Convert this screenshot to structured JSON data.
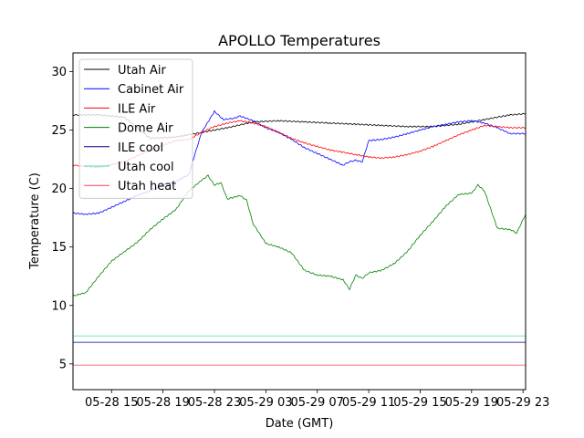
{
  "chart_data": {
    "type": "line",
    "title": "APOLLO Temperatures",
    "xlabel": "Date (GMT)",
    "ylabel": "Temperature (C)",
    "xlim": [
      0,
      35.2
    ],
    "ylim": [
      2.8,
      31.6
    ],
    "x_ticks": [
      {
        "x": 3,
        "label": "05-28 15"
      },
      {
        "x": 7,
        "label": "05-28 19"
      },
      {
        "x": 11,
        "label": "05-28 23"
      },
      {
        "x": 15,
        "label": "05-29 03"
      },
      {
        "x": 19,
        "label": "05-29 07"
      },
      {
        "x": 23,
        "label": "05-29 11"
      },
      {
        "x": 27,
        "label": "05-29 15"
      },
      {
        "x": 31,
        "label": "05-29 19"
      },
      {
        "x": 35,
        "label": "05-29 23"
      }
    ],
    "y_ticks": [
      5,
      10,
      15,
      20,
      25,
      30
    ],
    "legend_position": "top-left",
    "series": [
      {
        "name": "Utah Air",
        "color": "#000000",
        "points": [
          [
            0,
            26.3
          ],
          [
            2,
            26.3
          ],
          [
            4,
            26.1
          ],
          [
            6,
            24.3
          ],
          [
            8,
            24.4
          ],
          [
            10,
            24.8
          ],
          [
            12,
            25.2
          ],
          [
            14,
            25.7
          ],
          [
            16,
            25.8
          ],
          [
            18,
            25.7
          ],
          [
            20,
            25.6
          ],
          [
            22,
            25.5
          ],
          [
            24,
            25.4
          ],
          [
            26,
            25.3
          ],
          [
            28,
            25.3
          ],
          [
            30,
            25.5
          ],
          [
            32,
            25.9
          ],
          [
            34,
            26.3
          ],
          [
            35.2,
            26.4
          ]
        ]
      },
      {
        "name": "Cabinet Air",
        "color": "#0000ff",
        "points": [
          [
            0,
            17.9
          ],
          [
            1,
            17.8
          ],
          [
            2,
            17.9
          ],
          [
            3,
            18.4
          ],
          [
            4,
            18.9
          ],
          [
            5,
            19.4
          ],
          [
            6,
            19.8
          ],
          [
            7,
            20.3
          ],
          [
            8,
            20.6
          ],
          [
            9,
            21.2
          ],
          [
            10,
            24.8
          ],
          [
            11,
            26.6
          ],
          [
            11.7,
            25.9
          ],
          [
            12.5,
            26.0
          ],
          [
            13,
            26.2
          ],
          [
            14,
            25.8
          ],
          [
            15,
            25.2
          ],
          [
            16,
            24.8
          ],
          [
            17,
            24.2
          ],
          [
            18,
            23.5
          ],
          [
            19,
            23.0
          ],
          [
            20,
            22.5
          ],
          [
            21,
            22.0
          ],
          [
            21.5,
            22.3
          ],
          [
            22,
            22.4
          ],
          [
            22.5,
            22.3
          ],
          [
            23,
            24.1
          ],
          [
            24,
            24.2
          ],
          [
            25,
            24.4
          ],
          [
            26,
            24.7
          ],
          [
            27,
            25.0
          ],
          [
            28,
            25.3
          ],
          [
            29,
            25.5
          ],
          [
            30,
            25.7
          ],
          [
            31,
            25.8
          ],
          [
            32,
            25.6
          ],
          [
            33,
            25.2
          ],
          [
            34,
            24.7
          ],
          [
            35.2,
            24.7
          ]
        ]
      },
      {
        "name": "ILE Air",
        "color": "#ff0000",
        "points": [
          [
            0,
            22.0
          ],
          [
            2,
            21.8
          ],
          [
            4,
            22.3
          ],
          [
            6,
            23.3
          ],
          [
            8,
            24.1
          ],
          [
            9,
            24.2
          ],
          [
            10,
            24.8
          ],
          [
            11,
            25.3
          ],
          [
            12,
            25.6
          ],
          [
            13,
            25.8
          ],
          [
            14,
            25.6
          ],
          [
            15,
            25.3
          ],
          [
            16,
            24.8
          ],
          [
            17,
            24.3
          ],
          [
            18,
            23.9
          ],
          [
            19,
            23.6
          ],
          [
            20,
            23.3
          ],
          [
            21,
            23.1
          ],
          [
            22,
            22.9
          ],
          [
            23,
            22.7
          ],
          [
            24,
            22.6
          ],
          [
            25,
            22.7
          ],
          [
            26,
            22.9
          ],
          [
            27,
            23.2
          ],
          [
            28,
            23.6
          ],
          [
            29,
            24.1
          ],
          [
            30,
            24.6
          ],
          [
            31,
            25.0
          ],
          [
            32,
            25.4
          ],
          [
            33,
            25.3
          ],
          [
            34,
            25.2
          ],
          [
            35.2,
            25.2
          ]
        ]
      },
      {
        "name": "Dome Air",
        "color": "#008000",
        "points": [
          [
            0,
            10.8
          ],
          [
            1,
            11.1
          ],
          [
            2,
            12.5
          ],
          [
            3,
            13.8
          ],
          [
            4,
            14.6
          ],
          [
            5,
            15.4
          ],
          [
            6,
            16.5
          ],
          [
            7,
            17.4
          ],
          [
            8,
            18.2
          ],
          [
            9,
            19.8
          ],
          [
            10,
            20.7
          ],
          [
            10.5,
            21.1
          ],
          [
            11,
            20.3
          ],
          [
            11.5,
            20.5
          ],
          [
            12,
            19.1
          ],
          [
            13,
            19.4
          ],
          [
            13.5,
            19.0
          ],
          [
            14,
            17.0
          ],
          [
            15,
            15.3
          ],
          [
            16,
            15.0
          ],
          [
            17,
            14.5
          ],
          [
            18,
            13.0
          ],
          [
            19,
            12.6
          ],
          [
            20,
            12.5
          ],
          [
            21,
            12.2
          ],
          [
            21.5,
            11.4
          ],
          [
            22,
            12.6
          ],
          [
            22.5,
            12.3
          ],
          [
            23,
            12.8
          ],
          [
            24,
            13.0
          ],
          [
            25,
            13.6
          ],
          [
            26,
            14.6
          ],
          [
            27,
            16.0
          ],
          [
            28,
            17.2
          ],
          [
            29,
            18.5
          ],
          [
            30,
            19.5
          ],
          [
            31,
            19.6
          ],
          [
            31.5,
            20.3
          ],
          [
            32,
            19.8
          ],
          [
            33,
            16.6
          ],
          [
            34,
            16.5
          ],
          [
            34.5,
            16.2
          ],
          [
            35.2,
            17.8
          ]
        ]
      },
      {
        "name": "ILE cool",
        "color": "#00008b",
        "points": [
          [
            0,
            6.85
          ],
          [
            35.2,
            6.85
          ]
        ]
      },
      {
        "name": "Utah cool",
        "color": "#40e0d0",
        "points": [
          [
            0,
            7.4
          ],
          [
            35.2,
            7.4
          ]
        ]
      },
      {
        "name": "Utah heat",
        "color": "#ff4060",
        "points": [
          [
            0,
            4.9
          ],
          [
            35.2,
            4.9
          ]
        ]
      }
    ]
  }
}
